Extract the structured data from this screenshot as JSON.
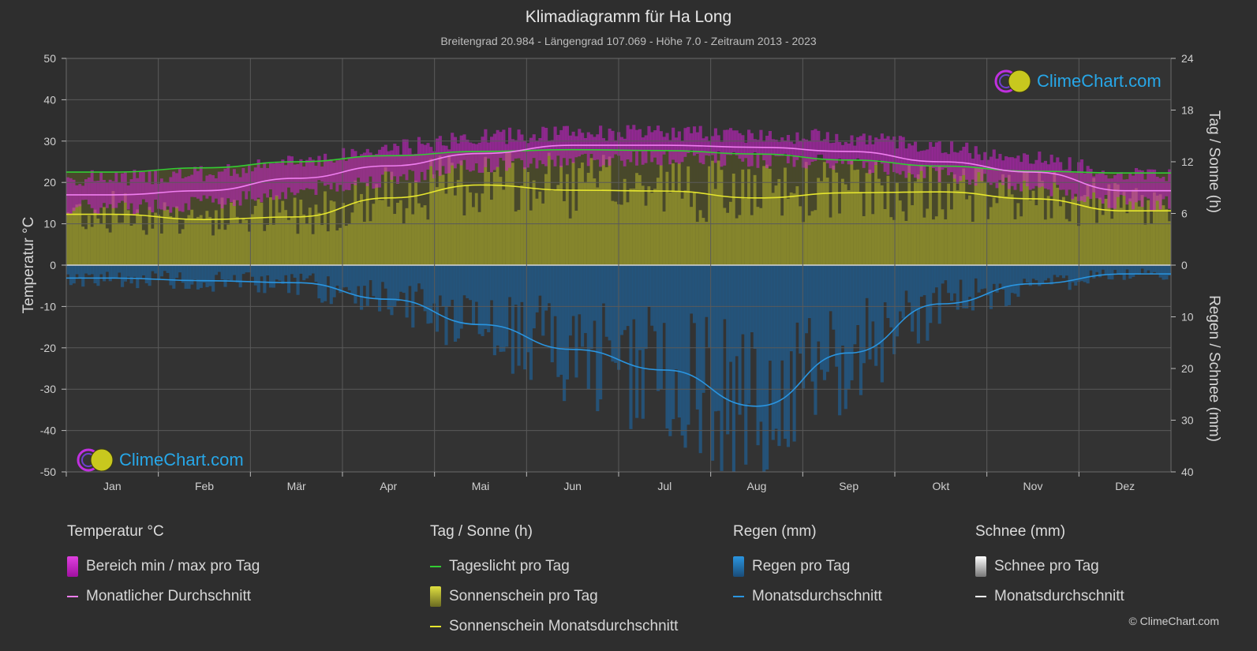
{
  "header": {
    "title": "Klimadiagramm für Ha Long",
    "subtitle": "Breitengrad 20.984 - Längengrad 107.069 - Höhe 7.0 - Zeitraum 2013 - 2023"
  },
  "logo": {
    "text": "ClimeChart.com"
  },
  "copyright": "© ClimeChart.com",
  "legend": {
    "temp": {
      "heading": "Temperatur °C",
      "range": "Bereich min / max pro Tag",
      "avg": "Monatlicher Durchschnitt"
    },
    "sun": {
      "heading": "Tag / Sonne (h)",
      "daylight": "Tageslicht pro Tag",
      "sunshine": "Sonnenschein pro Tag",
      "sun_avg": "Sonnenschein Monatsdurchschnitt"
    },
    "rain": {
      "heading": "Regen (mm)",
      "per_day": "Regen pro Tag",
      "avg": "Monatsdurchschnitt"
    },
    "snow": {
      "heading": "Schnee (mm)",
      "per_day": "Schnee pro Tag",
      "avg": "Monatsdurchschnitt"
    }
  },
  "colors": {
    "temp_range": "#d020d0",
    "temp_avg": "#f07ef0",
    "daylight": "#33cc33",
    "sunshine_fill": "#9a9a2e",
    "sunshine_avg": "#e6e62e",
    "rain_fill": "#1f5f94",
    "rain_avg": "#2a95e0",
    "snow": "#ffffff"
  },
  "chart_data": {
    "type": "line",
    "categories": [
      "Jan",
      "Feb",
      "Mär",
      "Apr",
      "Mai",
      "Jun",
      "Jul",
      "Aug",
      "Sep",
      "Okt",
      "Nov",
      "Dez"
    ],
    "y_left": {
      "label": "Temperatur °C",
      "range": [
        -50,
        50
      ],
      "ticks": [
        50,
        40,
        30,
        20,
        10,
        0,
        -10,
        -20,
        -30,
        -40,
        -50
      ]
    },
    "y_right_top": {
      "label": "Tag / Sonne (h)",
      "range": [
        0,
        24
      ],
      "ticks": [
        24,
        18,
        12,
        6,
        0
      ]
    },
    "y_right_bottom": {
      "label": "Regen / Schnee (mm)",
      "range": [
        0,
        40
      ],
      "ticks": [
        10,
        20,
        30,
        40
      ]
    },
    "grid": true,
    "series": [
      {
        "name": "Tageslicht pro Tag",
        "axis": "hours",
        "values": [
          10.8,
          11.3,
          12.0,
          12.7,
          13.2,
          13.4,
          13.3,
          12.9,
          12.2,
          11.5,
          10.9,
          10.7
        ]
      },
      {
        "name": "Sonnenschein Monatsdurchschnitt",
        "axis": "hours",
        "values": [
          5.9,
          5.3,
          5.6,
          7.8,
          9.3,
          8.7,
          8.6,
          7.8,
          8.4,
          8.5,
          7.7,
          6.3
        ]
      },
      {
        "name": "Monatlicher Durchschnitt",
        "axis": "temperature",
        "values": [
          17.0,
          18.0,
          21.0,
          24.0,
          27.0,
          29.0,
          29.0,
          28.5,
          27.5,
          25.0,
          22.5,
          18.0
        ]
      },
      {
        "name": "Temperatur max (Bereich)",
        "axis": "temperature",
        "values": [
          21,
          22,
          25,
          28,
          31,
          32,
          32,
          31.5,
          31,
          28.5,
          26,
          22
        ]
      },
      {
        "name": "Temperatur min (Bereich)",
        "axis": "temperature",
        "values": [
          14,
          15,
          18,
          21,
          24,
          25.5,
          26,
          25.5,
          24.5,
          22,
          19,
          15
        ]
      },
      {
        "name": "Regen Monatsdurchschnitt",
        "axis": "rain",
        "values": [
          2.5,
          3.0,
          3.4,
          6.6,
          11.5,
          16.3,
          20.3,
          27.3,
          17.0,
          7.5,
          3.6,
          1.7
        ]
      },
      {
        "name": "Schnee Monatsdurchschnitt",
        "axis": "rain",
        "values": [
          0,
          0,
          0,
          0,
          0,
          0,
          0,
          0,
          0,
          0,
          0,
          0
        ]
      }
    ]
  }
}
